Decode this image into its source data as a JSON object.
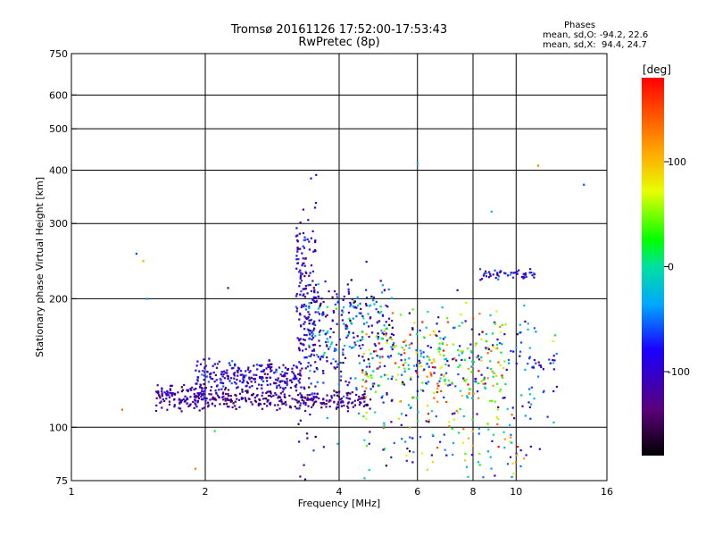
{
  "figure": {
    "title_line1": "Tromsø 20161126 17:52:00-17:53:43",
    "title_line2": "RwPretec (8p)",
    "stats_header": "Phases",
    "stats_o": "mean, sd,O: -94.2, 22.6",
    "stats_x": "mean, sd,X:  94.4, 24.7"
  },
  "colorbar": {
    "label": "[deg]",
    "ticks": [
      {
        "value": 100,
        "label": "100"
      },
      {
        "value": 0,
        "label": "0"
      },
      {
        "value": -100,
        "label": "-100"
      }
    ],
    "range": [
      -180,
      180
    ]
  },
  "chart_data": {
    "type": "scatter",
    "xlabel": "Frequency [MHz]",
    "ylabel": "Stationary phase Virtual Height [km]",
    "x_scale": "log",
    "y_scale": "log",
    "xlim": [
      1,
      16
    ],
    "ylim": [
      75,
      750
    ],
    "grid": true,
    "x_ticks": [
      1,
      2,
      4,
      6,
      8,
      10,
      16
    ],
    "x_tick_labels": [
      "1",
      "2",
      "4",
      "6",
      "8",
      "10",
      "16"
    ],
    "y_ticks": [
      75,
      100,
      200,
      300,
      400,
      500,
      600,
      750
    ],
    "y_tick_labels": [
      "75",
      "100",
      "200",
      "300",
      "400",
      "500",
      "600",
      "750"
    ],
    "color_variable": "phase (deg)",
    "clusters": [
      {
        "name": "low O-trace",
        "x_range": [
          1.55,
          2.0
        ],
        "y_center": 118,
        "y_spread": 4,
        "phase_center": -115,
        "phase_spread": 20,
        "count": 130
      },
      {
        "name": "O-trace band",
        "x_range": [
          2.0,
          4.7
        ],
        "y_center": 116,
        "y_spread": 3,
        "phase_center": -130,
        "phase_spread": 20,
        "count": 260
      },
      {
        "name": "E-layer upper trace",
        "x_range": [
          1.9,
          3.3
        ],
        "y_center": 132,
        "y_spread": 6,
        "phase_center": -100,
        "phase_spread": 25,
        "count": 260
      },
      {
        "name": "F cusp",
        "x_range": [
          3.2,
          3.55
        ],
        "y_center": 200,
        "y_spread": 60,
        "phase_center": -100,
        "phase_spread": 25,
        "count": 180
      },
      {
        "name": "F spread",
        "x_range": [
          3.4,
          5.3
        ],
        "y_center": 165,
        "y_spread": 28,
        "phase_center": -80,
        "phase_spread": 50,
        "count": 330
      },
      {
        "name": "X scatter",
        "x_range": [
          4.5,
          9.5
        ],
        "y_center": 140,
        "y_spread": 22,
        "phase_center": 70,
        "phase_spread": 70,
        "count": 260
      },
      {
        "name": "mixed scatter",
        "x_range": [
          5.5,
          12.5
        ],
        "y_center": 135,
        "y_spread": 25,
        "phase_center": -60,
        "phase_spread": 50,
        "count": 200
      },
      {
        "name": "high band",
        "x_range": [
          8.2,
          11.0
        ],
        "y_center": 228,
        "y_spread": 4,
        "phase_center": -90,
        "phase_spread": 25,
        "count": 50
      },
      {
        "name": "low scattered",
        "x_range": [
          4.5,
          11.0
        ],
        "y_center": 90,
        "y_spread": 8,
        "phase_center": 20,
        "phase_spread": 90,
        "count": 70
      }
    ],
    "isolated_points": [
      {
        "x": 1.4,
        "y": 255,
        "phase": -60
      },
      {
        "x": 1.45,
        "y": 245,
        "phase": 110
      },
      {
        "x": 1.48,
        "y": 200,
        "phase": -40
      },
      {
        "x": 1.9,
        "y": 80,
        "phase": 130
      },
      {
        "x": 2.1,
        "y": 98,
        "phase": 20
      },
      {
        "x": 2.25,
        "y": 212,
        "phase": -110
      },
      {
        "x": 3.55,
        "y": 390,
        "phase": -110
      },
      {
        "x": 6.0,
        "y": 415,
        "phase": -20
      },
      {
        "x": 8.8,
        "y": 320,
        "phase": -30
      },
      {
        "x": 11.2,
        "y": 410,
        "phase": 130
      },
      {
        "x": 14.2,
        "y": 370,
        "phase": -60
      },
      {
        "x": 1.3,
        "y": 110,
        "phase": 140
      }
    ]
  }
}
